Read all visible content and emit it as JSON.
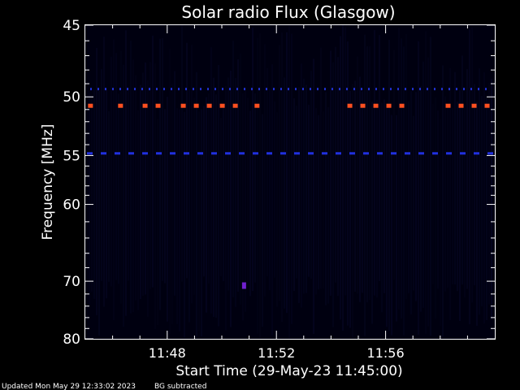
{
  "chart_data": {
    "type": "heatmap",
    "title": "Solar radio Flux (Glasgow)",
    "xlabel": "Start Time (29-May-23 11:45:00)",
    "ylabel": "Frequency [MHz]",
    "x_range_minutes": [
      0,
      15
    ],
    "x_ticks": [
      {
        "minute": 3,
        "label": "11:48"
      },
      {
        "minute": 7,
        "label": "11:52"
      },
      {
        "minute": 11,
        "label": "11:56"
      }
    ],
    "y_range_mhz": [
      45,
      80
    ],
    "y_ticks": [
      {
        "mhz": 45,
        "label": "45"
      },
      {
        "mhz": 50,
        "label": "50"
      },
      {
        "mhz": 55,
        "label": "55"
      },
      {
        "mhz": 60,
        "label": "60"
      },
      {
        "mhz": 70,
        "label": "70"
      },
      {
        "mhz": 80,
        "label": "80"
      }
    ],
    "background_color": "#000010",
    "features": [
      {
        "name": "interference-50.7MHz",
        "mhz": 50.7,
        "color": "#ff5020",
        "intensity": "high",
        "segments": [
          [
            0.1,
            0.6
          ],
          [
            1.2,
            1.6
          ],
          [
            2.1,
            3.0
          ],
          [
            3.5,
            5.6
          ],
          [
            6.2,
            6.6
          ],
          [
            9.6,
            11.9
          ],
          [
            13.2,
            15.0
          ]
        ]
      },
      {
        "name": "band-49.4MHz",
        "mhz": 49.4,
        "color": "#2030d0",
        "intensity": "low",
        "dotted": true
      },
      {
        "name": "band-54.8MHz",
        "mhz": 54.8,
        "color": "#2030e0",
        "intensity": "low",
        "segments": [
          [
            0,
            15
          ]
        ]
      },
      {
        "name": "burst-71MHz",
        "mhz": 70.8,
        "minute": 5.8,
        "color": "#7020d0",
        "intensity": "medium"
      }
    ]
  },
  "footer": {
    "updated": "Updated Mon May 29 12:33:02 2023",
    "note": "BG subtracted"
  }
}
